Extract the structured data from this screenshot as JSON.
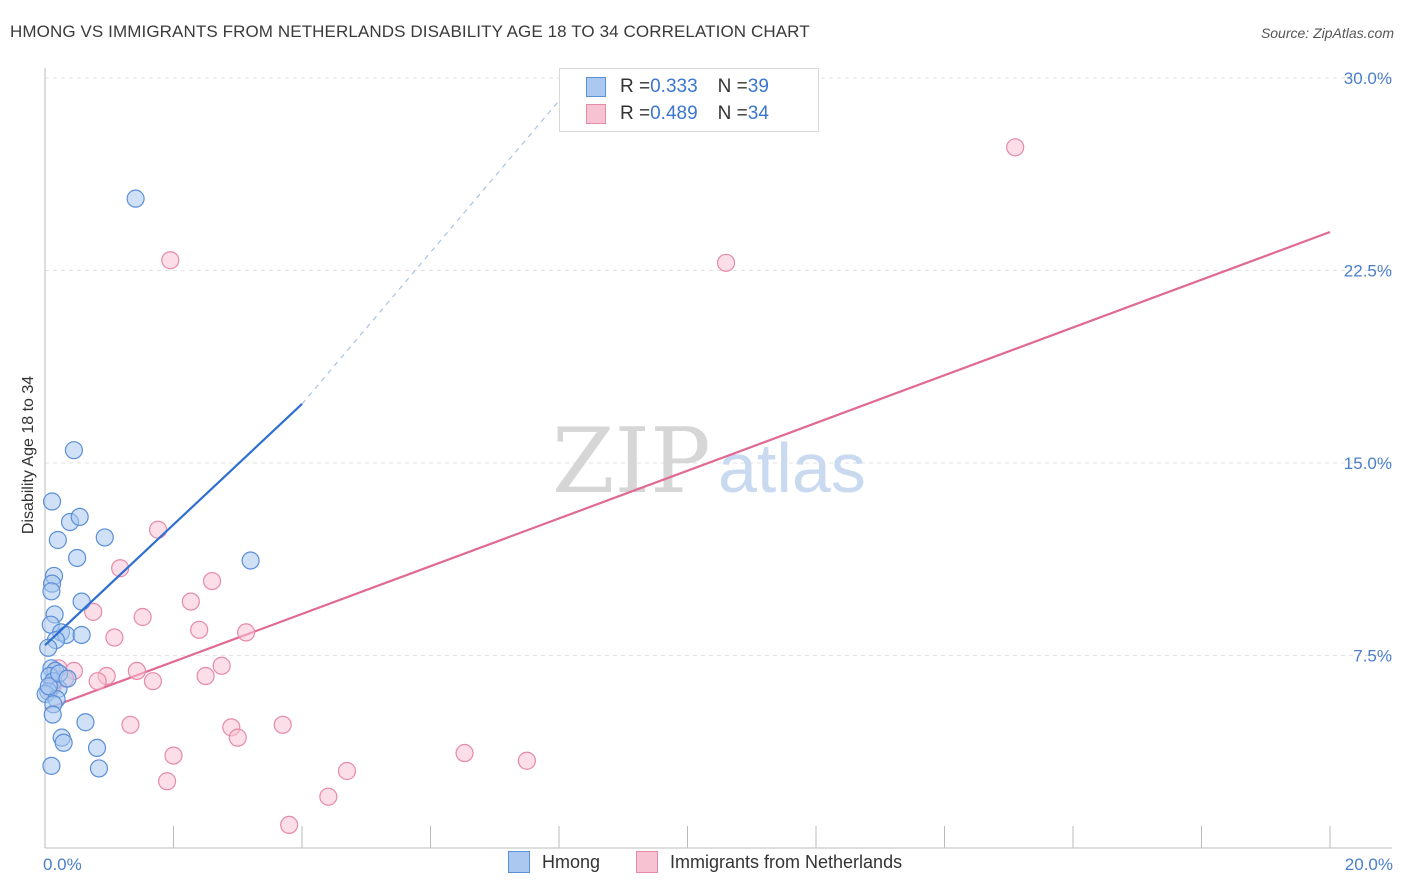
{
  "header": {
    "title": "HMONG VS IMMIGRANTS FROM NETHERLANDS DISABILITY AGE 18 TO 34 CORRELATION CHART",
    "source": "Source: ZipAtlas.com"
  },
  "watermark": {
    "zip": "ZIP",
    "atlas": "atlas"
  },
  "legend": {
    "rows": [
      {
        "r_label": "R = ",
        "r_value": "0.333",
        "n_label": "N = ",
        "n_value": "39"
      },
      {
        "r_label": "R = ",
        "r_value": "0.489",
        "n_label": "N = ",
        "n_value": "34"
      }
    ]
  },
  "bottom_legend": {
    "series_a": "Hmong",
    "series_b": "Immigrants from Netherlands"
  },
  "colors": {
    "hmong_fill": "#aac8f0",
    "hmong_stroke": "#5b8fd6",
    "hmong_line": "#2e6fd0",
    "neth_fill": "#f7c3d3",
    "neth_stroke": "#e68aa8",
    "neth_line": "#e06a94"
  },
  "chart_data": {
    "type": "scatter",
    "title": "HMONG VS IMMIGRANTS FROM NETHERLANDS DISABILITY AGE 18 TO 34 CORRELATION CHART",
    "xlabel": "",
    "ylabel": "Disability Age 18 to 34",
    "xlim": [
      0,
      20
    ],
    "ylim": [
      0,
      30
    ],
    "x_ticks": [
      "0.0%",
      "20.0%"
    ],
    "y_ticks": [
      {
        "value": 7.5,
        "label": "7.5%"
      },
      {
        "value": 15,
        "label": "15.0%"
      },
      {
        "value": 22.5,
        "label": "22.5%"
      },
      {
        "value": 30,
        "label": "30.0%"
      }
    ],
    "series": [
      {
        "name": "Hmong",
        "r": 0.333,
        "n": 39,
        "points": [
          [
            1.41,
            25.3
          ],
          [
            0.45,
            15.5
          ],
          [
            0.11,
            13.5
          ],
          [
            0.39,
            12.7
          ],
          [
            0.54,
            12.9
          ],
          [
            0.2,
            12.0
          ],
          [
            0.93,
            12.1
          ],
          [
            0.5,
            11.3
          ],
          [
            3.2,
            11.2
          ],
          [
            0.14,
            10.6
          ],
          [
            0.11,
            10.3
          ],
          [
            0.1,
            10.0
          ],
          [
            0.57,
            9.6
          ],
          [
            0.15,
            9.1
          ],
          [
            0.09,
            8.7
          ],
          [
            0.25,
            8.4
          ],
          [
            0.33,
            8.3
          ],
          [
            0.57,
            8.3
          ],
          [
            0.17,
            8.1
          ],
          [
            0.05,
            7.8
          ],
          [
            0.1,
            7.0
          ],
          [
            0.16,
            6.9
          ],
          [
            0.07,
            6.7
          ],
          [
            0.13,
            6.5
          ],
          [
            0.21,
            6.2
          ],
          [
            0.05,
            6.1
          ],
          [
            0.01,
            6.0
          ],
          [
            0.18,
            5.8
          ],
          [
            0.13,
            5.6
          ],
          [
            0.12,
            5.2
          ],
          [
            0.06,
            6.3
          ],
          [
            0.63,
            4.9
          ],
          [
            0.26,
            4.3
          ],
          [
            0.29,
            4.1
          ],
          [
            0.81,
            3.9
          ],
          [
            0.1,
            3.2
          ],
          [
            0.84,
            3.1
          ],
          [
            0.22,
            6.8
          ],
          [
            0.35,
            6.6
          ]
        ],
        "trend": {
          "x": [
            0.0,
            4.0
          ],
          "y": [
            7.9,
            17.3
          ],
          "dashed_to": {
            "x": 8.3,
            "y": 30.0
          }
        }
      },
      {
        "name": "Immigrants from Netherlands",
        "r": 0.489,
        "n": 34,
        "points": [
          [
            15.1,
            27.3
          ],
          [
            1.95,
            22.9
          ],
          [
            10.6,
            22.8
          ],
          [
            1.76,
            12.4
          ],
          [
            1.17,
            10.9
          ],
          [
            2.6,
            10.4
          ],
          [
            2.27,
            9.6
          ],
          [
            0.75,
            9.2
          ],
          [
            1.52,
            9.0
          ],
          [
            3.13,
            8.4
          ],
          [
            2.4,
            8.5
          ],
          [
            1.08,
            8.2
          ],
          [
            0.21,
            7.0
          ],
          [
            2.75,
            7.1
          ],
          [
            1.43,
            6.9
          ],
          [
            0.45,
            6.9
          ],
          [
            2.5,
            6.7
          ],
          [
            0.96,
            6.7
          ],
          [
            1.68,
            6.5
          ],
          [
            0.82,
            6.5
          ],
          [
            0.31,
            6.6
          ],
          [
            0.12,
            6.3
          ],
          [
            0.09,
            6.2
          ],
          [
            1.33,
            4.8
          ],
          [
            2.9,
            4.7
          ],
          [
            3.7,
            4.8
          ],
          [
            3.0,
            4.3
          ],
          [
            2.0,
            3.6
          ],
          [
            6.53,
            3.7
          ],
          [
            7.5,
            3.4
          ],
          [
            1.9,
            2.6
          ],
          [
            4.7,
            3.0
          ],
          [
            4.41,
            2.0
          ],
          [
            3.8,
            0.9
          ]
        ],
        "trend": {
          "x": [
            0.0,
            20.0
          ],
          "y": [
            5.4,
            24.0
          ]
        }
      }
    ]
  }
}
